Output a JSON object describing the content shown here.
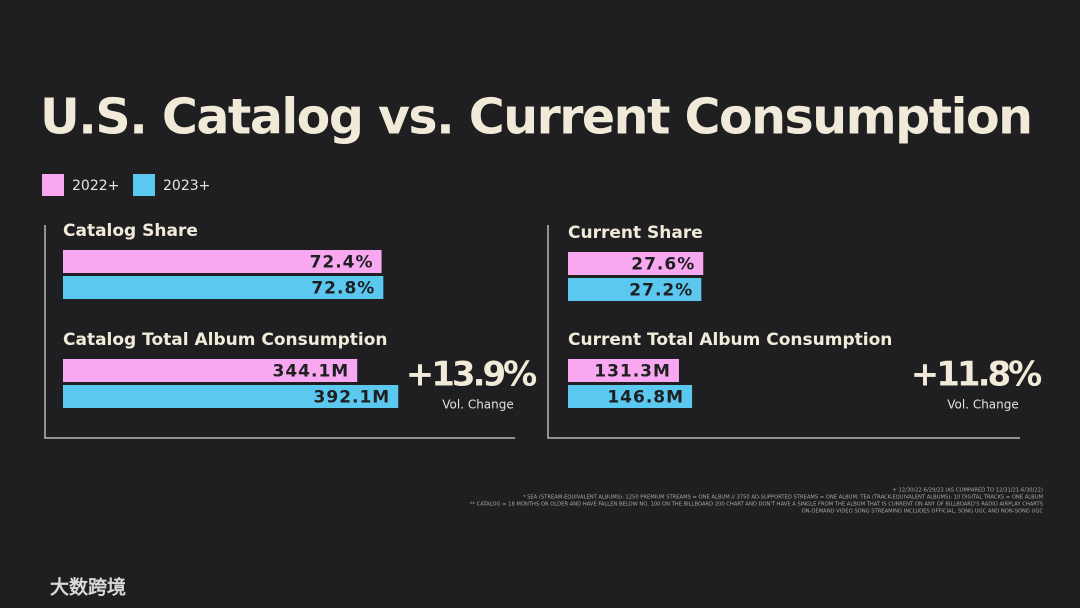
{
  "title": "U.S. Catalog vs. Current Consumption",
  "chart_data": [
    {
      "type": "hbar",
      "title": "Catalog Share",
      "series": [
        {
          "name": "2022+",
          "color": "#f7a8f0",
          "values": [
            72.4
          ],
          "value_labels": [
            "72.4%"
          ]
        },
        {
          "name": "2023+",
          "color": "#5bc8f0",
          "values": [
            72.8
          ],
          "value_labels": [
            "72.8%"
          ]
        }
      ]
    },
    {
      "type": "hbar",
      "title": "Catalog Total Album Consumption",
      "series": [
        {
          "name": "2022+",
          "color": "#f7a8f0",
          "values": [
            344.1
          ],
          "value_labels": [
            "344.1M"
          ]
        },
        {
          "name": "2023+",
          "color": "#5bc8f0",
          "values": [
            392.1
          ],
          "value_labels": [
            "392.1M"
          ]
        }
      ],
      "change": "+13.9%",
      "change_label": "Vol. Change"
    },
    {
      "type": "hbar",
      "title": "Current Share",
      "series": [
        {
          "name": "2022+",
          "color": "#f7a8f0",
          "values": [
            27.6
          ],
          "value_labels": [
            "27.6%"
          ]
        },
        {
          "name": "2023+",
          "color": "#5bc8f0",
          "values": [
            27.2
          ],
          "value_labels": [
            "27.2%"
          ]
        }
      ]
    },
    {
      "type": "hbar",
      "title": "Current Total Album Consumption",
      "series": [
        {
          "name": "2022+",
          "color": "#f7a8f0",
          "values": [
            131.3
          ],
          "value_labels": [
            "131.3M"
          ]
        },
        {
          "name": "2023+",
          "color": "#5bc8f0",
          "values": [
            146.8
          ],
          "value_labels": [
            "146.8M"
          ]
        }
      ],
      "change": "+11.8%",
      "change_label": "Vol. Change"
    }
  ],
  "footnotes": [
    "+ 12/30/22-6/29/23 (AS COMPARED TO 12/31/21-6/30/22)",
    "* SEA (STREAM-EQUIVALENT ALBUMS): 1250 PREMIUM STREAMS = ONE ALBUM // 3750 AD-SUPPORTED STREAMS = ONE ALBUM; TEA (TRACK-EQUIVALENT ALBUMS): 10 DIGITAL TRACKS = ONE ALBUM",
    "** CATALOG = 18 MONTHS OR OLDER AND HAVE FALLEN BELOW NO. 100 ON THE BILLBOARD 200 CHART AND DON'T HAVE A SINGLE FROM THE ALBUM THAT IS CURRENT ON ANY OF BILLBOARD'S RADIO AIRPLAY CHARTS",
    "ON-DEMAND VIDEO SONG STREAMING INCLUDES OFFICIAL, SONG UGC AND NON-SONG UGC"
  ],
  "watermark": "大数跨境"
}
